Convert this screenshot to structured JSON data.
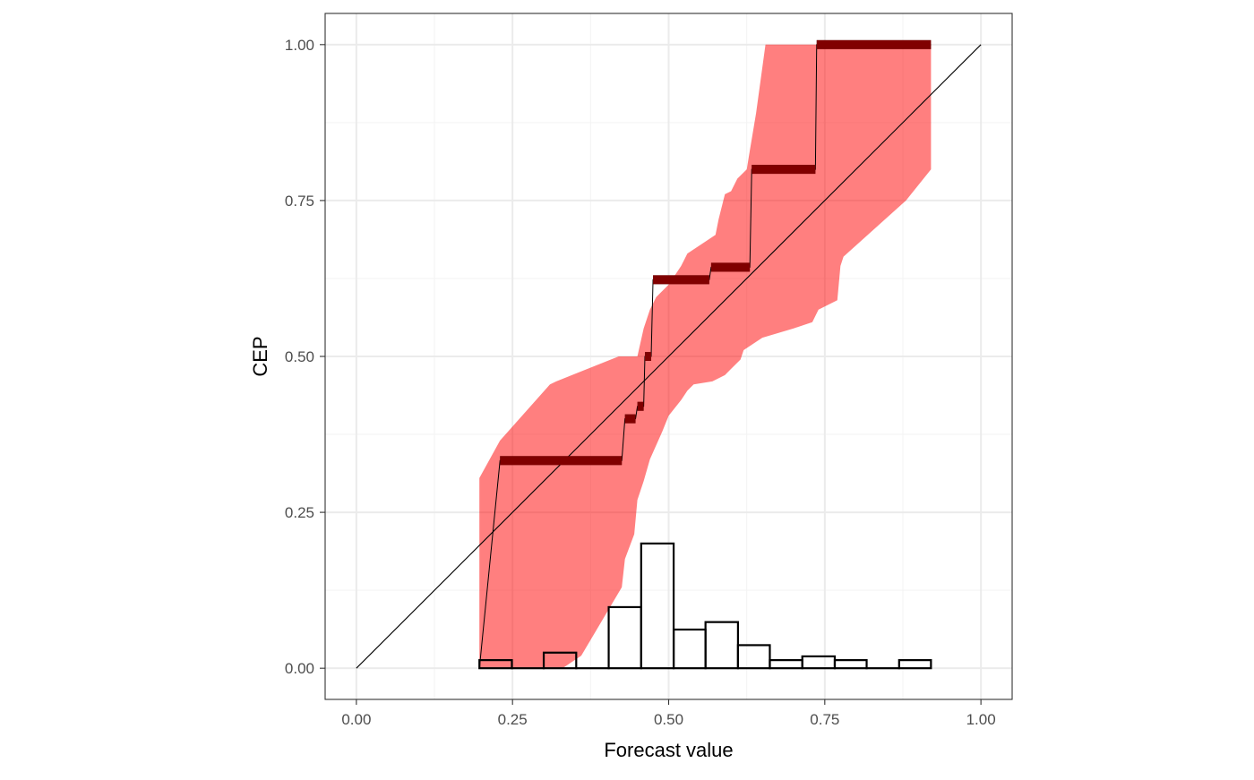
{
  "chart_data": {
    "type": "line",
    "title": "",
    "xlabel": "Forecast value",
    "ylabel": "CEP",
    "xlim": [
      -0.05,
      1.05
    ],
    "ylim": [
      -0.05,
      1.05
    ],
    "grid": true,
    "x_ticks": [
      "0.00",
      "0.25",
      "0.50",
      "0.75",
      "1.00"
    ],
    "y_ticks": [
      "0.00",
      "0.25",
      "0.50",
      "0.75",
      "1.00"
    ],
    "x_tick_values": [
      0,
      0.25,
      0.5,
      0.75,
      1
    ],
    "y_tick_values": [
      0,
      0.25,
      0.5,
      0.75,
      1
    ],
    "colors": {
      "band": "#ff0000",
      "band_opacity": 0.5,
      "cep_step": "#000000",
      "diagonal": "#000000",
      "histogram_edge": "#000000",
      "grid_major": "#ebebeb",
      "grid_minor": "#f3f3f3",
      "panel_border": "#333333"
    },
    "consistency_band": {
      "upper": [
        [
          0.197,
          0.305
        ],
        [
          0.23,
          0.365
        ],
        [
          0.31,
          0.455
        ],
        [
          0.32,
          0.46
        ],
        [
          0.42,
          0.5
        ],
        [
          0.45,
          0.5
        ],
        [
          0.46,
          0.545
        ],
        [
          0.47,
          0.575
        ],
        [
          0.48,
          0.595
        ],
        [
          0.5,
          0.615
        ],
        [
          0.52,
          0.645
        ],
        [
          0.53,
          0.665
        ],
        [
          0.56,
          0.685
        ],
        [
          0.575,
          0.695
        ],
        [
          0.58,
          0.72
        ],
        [
          0.59,
          0.76
        ],
        [
          0.6,
          0.765
        ],
        [
          0.61,
          0.785
        ],
        [
          0.625,
          0.8
        ],
        [
          0.63,
          0.83
        ],
        [
          0.64,
          0.89
        ],
        [
          0.655,
          1.0
        ],
        [
          0.92,
          1.0
        ]
      ],
      "lower": [
        [
          0.92,
          0.8
        ],
        [
          0.88,
          0.75
        ],
        [
          0.78,
          0.66
        ],
        [
          0.775,
          0.645
        ],
        [
          0.77,
          0.59
        ],
        [
          0.74,
          0.575
        ],
        [
          0.73,
          0.555
        ],
        [
          0.7,
          0.545
        ],
        [
          0.65,
          0.53
        ],
        [
          0.62,
          0.51
        ],
        [
          0.615,
          0.495
        ],
        [
          0.6,
          0.48
        ],
        [
          0.59,
          0.47
        ],
        [
          0.57,
          0.46
        ],
        [
          0.54,
          0.455
        ],
        [
          0.53,
          0.445
        ],
        [
          0.52,
          0.43
        ],
        [
          0.5,
          0.405
        ],
        [
          0.49,
          0.38
        ],
        [
          0.47,
          0.335
        ],
        [
          0.46,
          0.3
        ],
        [
          0.45,
          0.27
        ],
        [
          0.445,
          0.215
        ],
        [
          0.43,
          0.175
        ],
        [
          0.425,
          0.13
        ],
        [
          0.36,
          0.02
        ],
        [
          0.33,
          0.0
        ],
        [
          0.197,
          0.0
        ]
      ]
    },
    "cep_steps": [
      {
        "x1": 0.23,
        "x2": 0.425,
        "y": 0.333
      },
      {
        "x1": 0.43,
        "x2": 0.447,
        "y": 0.4
      },
      {
        "x1": 0.45,
        "x2": 0.46,
        "y": 0.42
      },
      {
        "x1": 0.462,
        "x2": 0.472,
        "y": 0.5
      },
      {
        "x1": 0.475,
        "x2": 0.565,
        "y": 0.623
      },
      {
        "x1": 0.568,
        "x2": 0.63,
        "y": 0.643
      },
      {
        "x1": 0.633,
        "x2": 0.735,
        "y": 0.8
      },
      {
        "x1": 0.737,
        "x2": 0.92,
        "y": 1.0
      }
    ],
    "diagonal": [
      [
        0,
        0
      ],
      [
        1,
        1
      ]
    ],
    "histogram": {
      "bin_edges": [
        0.197,
        0.249,
        0.3,
        0.352,
        0.404,
        0.456,
        0.508,
        0.559,
        0.611,
        0.662,
        0.714,
        0.766,
        0.817,
        0.869,
        0.92
      ],
      "heights": [
        0.013,
        0.0,
        0.025,
        0.0,
        0.098,
        0.2,
        0.062,
        0.074,
        0.037,
        0.013,
        0.019,
        0.013,
        0.0,
        0.013
      ]
    }
  }
}
